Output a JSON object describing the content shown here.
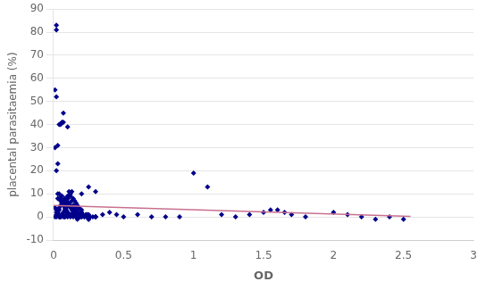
{
  "chart_data": {
    "type": "scatter",
    "xlabel": "OD",
    "ylabel": "placental parasitaemia (%)",
    "xlim": [
      0,
      3
    ],
    "ylim": [
      -10,
      90
    ],
    "xticks": [
      0,
      0.5,
      1,
      1.5,
      2,
      2.5,
      3
    ],
    "yticks": [
      -10,
      0,
      10,
      20,
      30,
      40,
      50,
      60,
      70,
      80,
      90
    ],
    "grid": "y",
    "series": [
      {
        "type": "scatter",
        "color": "#00008B",
        "marker": "diamond",
        "x": [
          0.02,
          0.08,
          0.03,
          0.06,
          0.04,
          0.07,
          0.1,
          0.01,
          0.02,
          0.03,
          0.04,
          0.05,
          0.06,
          0.07,
          0.08,
          0.09,
          0.1,
          0.11,
          0.12,
          0.13,
          0.14,
          0.15,
          0.16,
          0.17,
          0.18,
          0.19,
          0.2,
          0.02,
          0.03,
          0.04,
          0.05,
          0.06,
          0.07,
          0.08,
          0.09,
          0.1,
          0.11,
          0.12,
          0.13,
          0.14,
          0.15,
          0.16,
          0.17,
          0.18,
          0.19,
          0.2,
          0.21,
          0.22,
          0.23,
          0.24,
          0.25,
          0.01,
          0.02,
          0.03,
          0.04,
          0.05,
          0.06,
          0.07,
          0.08,
          0.09,
          0.1,
          0.11,
          0.12,
          0.13,
          0.14,
          0.15,
          0.2,
          0.25,
          0.3,
          0.35,
          0.4,
          0.45,
          0.5,
          0.6,
          0.7,
          0.8,
          0.9,
          1.0,
          1.1,
          1.2,
          1.3,
          1.4,
          1.5,
          1.55,
          1.6,
          1.65,
          1.7,
          1.8,
          2.0,
          2.1,
          2.2,
          2.3,
          2.4,
          2.5,
          0.01,
          0.02,
          0.03,
          0.04,
          0.05,
          0.06,
          0.07,
          0.08,
          0.09,
          0.1,
          0.11,
          0.12,
          0.13,
          0.14,
          0.15,
          0.16,
          0.17,
          0.18,
          0.19,
          0.2,
          0.01,
          0.02,
          0.03,
          0.04,
          0.05,
          0.06,
          0.07,
          0.08,
          0.09,
          0.1,
          0.15,
          0.2,
          0.25,
          0.3,
          0.05,
          0.1,
          0.15,
          0.2,
          0.25,
          0.3,
          0.05,
          0.1,
          0.02,
          0.03,
          0.04,
          0.06,
          0.08,
          0.1,
          0.12,
          0.14,
          0.02,
          0.04,
          0.06,
          0.08,
          0.1,
          0.12,
          0.14,
          0.16,
          0.18,
          0.2,
          0.22,
          0.24,
          0.26,
          0.28,
          0.3
        ],
        "values": [
          83,
          5,
          8,
          9,
          40,
          41,
          39,
          55,
          52,
          10,
          8,
          7,
          6,
          5,
          4,
          3,
          8,
          11,
          9,
          7,
          5,
          4,
          3,
          2,
          1,
          0,
          1,
          2,
          3,
          4,
          5,
          6,
          7,
          8,
          7,
          6,
          5,
          4,
          3,
          2,
          1,
          0,
          -1,
          0,
          1,
          2,
          1,
          0,
          1,
          0,
          -1,
          4,
          3,
          2,
          1,
          0,
          1,
          2,
          3,
          4,
          5,
          6,
          5,
          4,
          3,
          2,
          10,
          13,
          11,
          1,
          2,
          1,
          0,
          1,
          0,
          0,
          0,
          19,
          13,
          1,
          0,
          1,
          2,
          3,
          3,
          2,
          1,
          0,
          2,
          1,
          0,
          -1,
          0,
          -1,
          30,
          20,
          23,
          10,
          40,
          41,
          45,
          6,
          7,
          8,
          9,
          10,
          11,
          8,
          7,
          6,
          5,
          4,
          3,
          2,
          0,
          1,
          2,
          3,
          0,
          1,
          0,
          0,
          1,
          2,
          1,
          0,
          -1,
          0,
          0,
          1,
          2,
          3,
          1,
          0,
          8,
          9,
          81,
          31,
          0,
          1,
          0,
          2,
          0,
          1,
          0,
          0,
          1,
          0,
          0,
          1,
          0,
          0,
          1,
          0,
          0,
          1,
          0,
          0,
          0
        ]
      },
      {
        "type": "line",
        "color": "#C87090",
        "line_style": "solid",
        "x": [
          0.0,
          2.55
        ],
        "values": [
          5.0,
          0.2
        ]
      }
    ]
  }
}
